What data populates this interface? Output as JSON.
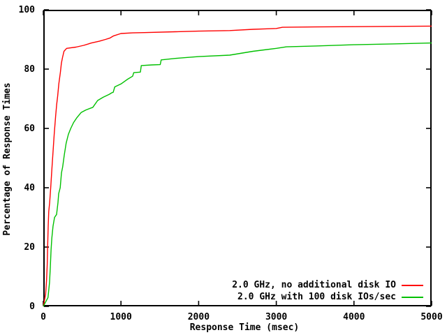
{
  "chart_data": {
    "type": "line",
    "title": "",
    "xlabel": "Response Time (msec)",
    "ylabel": "Percentage of Response Times",
    "xlim": [
      0,
      5000
    ],
    "ylim": [
      0,
      100
    ],
    "xticks": [
      0,
      1000,
      2000,
      3000,
      4000,
      5000
    ],
    "yticks": [
      0,
      20,
      40,
      60,
      80,
      100
    ],
    "grid": false,
    "tick_style": "inward-mirrored",
    "legend_position": "bottom-right-inside",
    "background_color": "#ffffff",
    "border_color": "#000000",
    "series": [
      {
        "name": "2.0 GHz, no additional disk IO",
        "color": "#ff0000",
        "points": [
          [
            0,
            0
          ],
          [
            30,
            4
          ],
          [
            42,
            9
          ],
          [
            50,
            14
          ],
          [
            56,
            20
          ],
          [
            63,
            27
          ],
          [
            70,
            32
          ],
          [
            82,
            35
          ],
          [
            95,
            40
          ],
          [
            110,
            46
          ],
          [
            125,
            52
          ],
          [
            140,
            58
          ],
          [
            158,
            64
          ],
          [
            172,
            68
          ],
          [
            185,
            71
          ],
          [
            200,
            75
          ],
          [
            220,
            79
          ],
          [
            233,
            82
          ],
          [
            248,
            84
          ],
          [
            266,
            86
          ],
          [
            300,
            87
          ],
          [
            420,
            87.4
          ],
          [
            520,
            88
          ],
          [
            620,
            88.8
          ],
          [
            720,
            89.4
          ],
          [
            800,
            90
          ],
          [
            860,
            90.5
          ],
          [
            905,
            91.2
          ],
          [
            1000,
            92
          ],
          [
            1150,
            92.2
          ],
          [
            1300,
            92.3
          ],
          [
            1700,
            92.6
          ],
          [
            2000,
            92.8
          ],
          [
            2400,
            93
          ],
          [
            2700,
            93.4
          ],
          [
            3000,
            93.7
          ],
          [
            3080,
            94.1
          ],
          [
            3500,
            94.2
          ],
          [
            4000,
            94.3
          ],
          [
            4500,
            94.4
          ],
          [
            5000,
            94.5
          ]
        ]
      },
      {
        "name": "2.0 GHz with 100 disk IOs/sec",
        "color": "#00c000",
        "points": [
          [
            0,
            0
          ],
          [
            60,
            3
          ],
          [
            80,
            8
          ],
          [
            90,
            13
          ],
          [
            100,
            19
          ],
          [
            110,
            23
          ],
          [
            125,
            27
          ],
          [
            145,
            30
          ],
          [
            171,
            31
          ],
          [
            189,
            35
          ],
          [
            198,
            38
          ],
          [
            218,
            40
          ],
          [
            234,
            45
          ],
          [
            249,
            47
          ],
          [
            270,
            51
          ],
          [
            294,
            55
          ],
          [
            323,
            58
          ],
          [
            353,
            60
          ],
          [
            390,
            62
          ],
          [
            429,
            63.5
          ],
          [
            488,
            65.4
          ],
          [
            548,
            66.2
          ],
          [
            638,
            67.1
          ],
          [
            700,
            69.4
          ],
          [
            770,
            70.5
          ],
          [
            850,
            71.5
          ],
          [
            880,
            72
          ],
          [
            900,
            72.2
          ],
          [
            920,
            74
          ],
          [
            1000,
            75
          ],
          [
            1080,
            76.5
          ],
          [
            1150,
            77.6
          ],
          [
            1165,
            78.8
          ],
          [
            1250,
            79
          ],
          [
            1262,
            81.2
          ],
          [
            1400,
            81.4
          ],
          [
            1505,
            81.5
          ],
          [
            1518,
            83.1
          ],
          [
            1700,
            83.6
          ],
          [
            2000,
            84.2
          ],
          [
            2400,
            84.7
          ],
          [
            2700,
            86
          ],
          [
            3000,
            87
          ],
          [
            3130,
            87.5
          ],
          [
            3500,
            87.8
          ],
          [
            4000,
            88.2
          ],
          [
            4500,
            88.5
          ],
          [
            5000,
            88.8
          ]
        ]
      }
    ]
  }
}
